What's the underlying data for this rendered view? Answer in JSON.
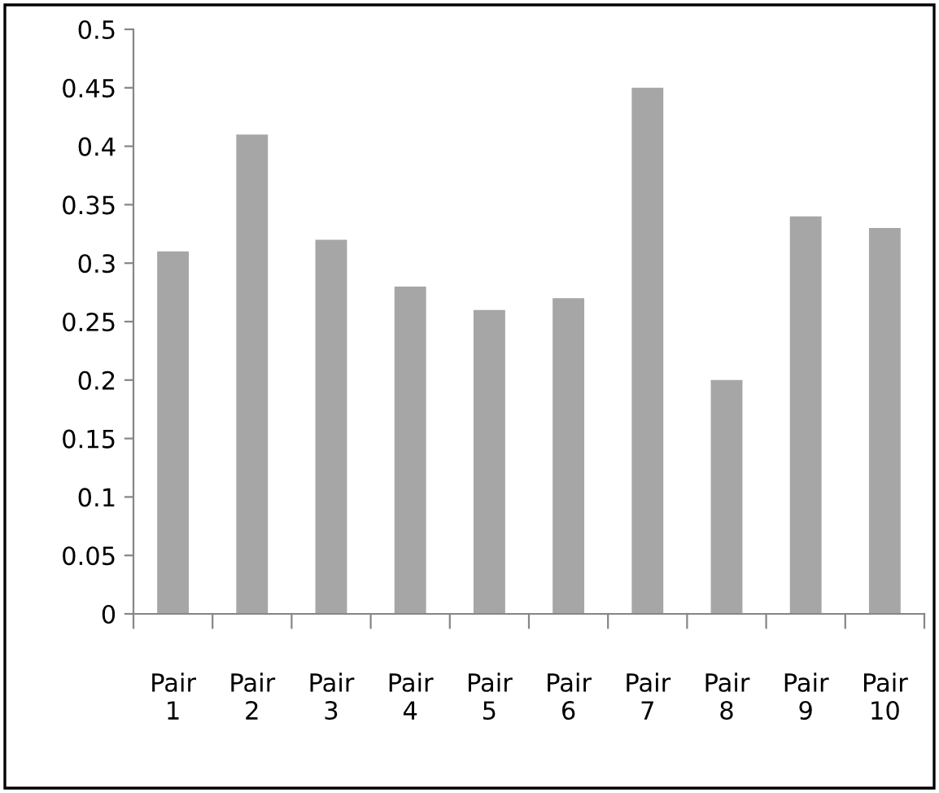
{
  "chart_data": {
    "type": "bar",
    "categories": [
      "Pair 1",
      "Pair 2",
      "Pair 3",
      "Pair 4",
      "Pair 5",
      "Pair 6",
      "Pair 7",
      "Pair 8",
      "Pair 9",
      "Pair 10"
    ],
    "values": [
      0.31,
      0.41,
      0.32,
      0.28,
      0.26,
      0.27,
      0.45,
      0.2,
      0.34,
      0.33
    ],
    "color": "#a6a6a6",
    "ylim": [
      0,
      0.5
    ],
    "yticks": [
      {
        "value": 0,
        "label": "0"
      },
      {
        "value": 0.05,
        "label": "0.05"
      },
      {
        "value": 0.1,
        "label": "0.1"
      },
      {
        "value": 0.15,
        "label": "0.15"
      },
      {
        "value": 0.2,
        "label": "0.2"
      },
      {
        "value": 0.25,
        "label": "0.25"
      },
      {
        "value": 0.3,
        "label": "0.3"
      },
      {
        "value": 0.35,
        "label": "0.35"
      },
      {
        "value": 0.4,
        "label": "0.4"
      },
      {
        "value": 0.45,
        "label": "0.45"
      },
      {
        "value": 0.5,
        "label": "0.5"
      }
    ],
    "grid": false
  }
}
